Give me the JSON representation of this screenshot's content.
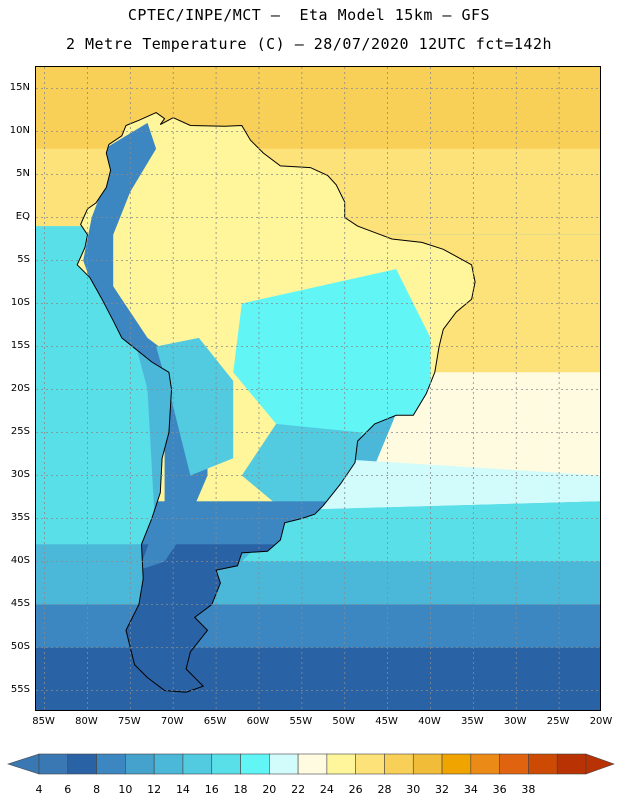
{
  "header": {
    "title_line1": "CPTEC/INPE/MCT –  Eta Model 15km – GFS",
    "title_line2": "2 Metre Temperature (C) – 28/07/2020 12UTC fct=142h"
  },
  "axes": {
    "lat_labels": [
      "15N",
      "10N",
      "5N",
      "EQ",
      "5S",
      "10S",
      "15S",
      "20S",
      "25S",
      "30S",
      "35S",
      "40S",
      "45S",
      "50S",
      "55S"
    ],
    "lon_labels": [
      "85W",
      "80W",
      "75W",
      "70W",
      "65W",
      "60W",
      "55W",
      "50W",
      "45W",
      "40W",
      "35W",
      "30W",
      "25W",
      "20W"
    ],
    "lat_range": [
      17.5,
      -57.5
    ],
    "lon_range": [
      -86,
      -20
    ]
  },
  "colorbar": {
    "labels": [
      "4",
      "6",
      "8",
      "10",
      "12",
      "14",
      "16",
      "18",
      "20",
      "22",
      "24",
      "26",
      "28",
      "30",
      "32",
      "34",
      "36",
      "38"
    ],
    "colors": [
      "#3a78b4",
      "#2a62a6",
      "#3c87c2",
      "#45a2cc",
      "#4cb8d9",
      "#52cbe0",
      "#58dfe8",
      "#62f5f6",
      "#d2fbfb",
      "#fffbe0",
      "#fff59a",
      "#fde27a",
      "#f8d058",
      "#f1bc38",
      "#f0a400",
      "#ec8a18",
      "#e06410",
      "#cc4a04",
      "#b83204"
    ],
    "left_arrow_color": "#3a78b4",
    "right_arrow_color": "#b83204"
  },
  "map": {
    "ocean_colors": {
      "pacific_near": "#58dfe8",
      "pacific_mid": "#4cb8d9",
      "south_deep": "#2a62a6",
      "atlantic_warm": "#fde27a",
      "caribbean": "#f8d058",
      "subtropical": "#fffbe0"
    },
    "land_colors": {
      "amazon": "#fff59a",
      "brazil_highlands": "#62f5f6",
      "andes": "#3c87c2",
      "patagonia": "#2a62a6",
      "pampas": "#52cbe0"
    }
  }
}
